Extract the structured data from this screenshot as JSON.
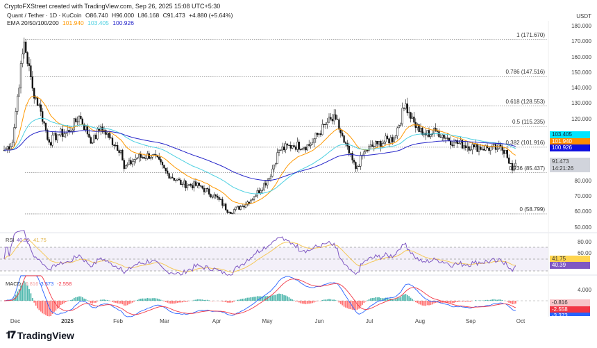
{
  "header": {
    "credit": "CryptoFXStreet created with TradingView.com, Sep 26, 2025 15:08 UTC+5:30",
    "symbol": "Quant / Tether · 1D · KuCoin",
    "open": "O86.740",
    "high": "H96.000",
    "low": "L86.168",
    "close": "C91.473",
    "change": "+4.880 (+5.64%)",
    "ema_label": "EMA 20/50/100/200",
    "ema_values": [
      "101.940",
      "103.405",
      "100.926"
    ]
  },
  "colors": {
    "up": "#089981",
    "down": "#f23645",
    "ema20": "#ff9800",
    "ema50": "#4dd0e1",
    "ema100": "#2424c8",
    "rsi": "#7e57c2",
    "rsi_ma": "#f5c85a",
    "macd": "#2962ff",
    "signal": "#f23645"
  },
  "price_axis": {
    "unit": "USDT",
    "ticks": [
      "180.000",
      "170.000",
      "160.000",
      "150.000",
      "140.000",
      "130.000",
      "120.000",
      "80.000",
      "70.000",
      "60.000",
      "50.000"
    ],
    "badges": {
      "ema50": "103.405",
      "ema20": "101.940",
      "ema100": "100.926",
      "price": "91.473",
      "countdown": "14:21:26"
    }
  },
  "fib_levels": [
    {
      "label": "1 (171.670)",
      "value": 171.67
    },
    {
      "label": "0.786 (147.516)",
      "value": 147.516
    },
    {
      "label": "0.618 (128.553)",
      "value": 128.553
    },
    {
      "label": "0.5 (115.235)",
      "value": 115.235
    },
    {
      "label": "0.382 (101.916)",
      "value": 101.916
    },
    {
      "label": "0.236 (85.437)",
      "value": 85.437
    },
    {
      "label": "0 (58.799)",
      "value": 58.799
    }
  ],
  "rsi": {
    "label": "RSI",
    "value": "40.39",
    "ma": "41.75",
    "ticks": [
      "80.00",
      "60.00"
    ]
  },
  "macd": {
    "label": "MACD",
    "hist": "-0.816",
    "macd": "-3.373",
    "signal": "-2.558",
    "ticks": [
      "4.000"
    ]
  },
  "dates": [
    "Dec",
    "2025",
    "Feb",
    "Mar",
    "Apr",
    "May",
    "Jun",
    "Jul",
    "Aug",
    "Sep",
    "Oct"
  ],
  "footer": {
    "logo": "TradingView"
  },
  "chart_data": {
    "type": "candlestick",
    "ylim": [
      50,
      180
    ],
    "keypoints_day_close": [
      [
        0,
        100
      ],
      [
        5,
        105
      ],
      [
        8,
        135
      ],
      [
        12,
        170
      ],
      [
        17,
        140
      ],
      [
        22,
        125
      ],
      [
        27,
        105
      ],
      [
        32,
        110
      ],
      [
        39,
        112
      ],
      [
        45,
        122
      ],
      [
        53,
        105
      ],
      [
        58,
        115
      ],
      [
        63,
        108
      ],
      [
        70,
        100
      ],
      [
        72,
        88
      ],
      [
        79,
        95
      ],
      [
        89,
        97
      ],
      [
        98,
        85
      ],
      [
        107,
        78
      ],
      [
        117,
        77
      ],
      [
        129,
        68
      ],
      [
        135,
        60
      ],
      [
        143,
        64
      ],
      [
        150,
        70
      ],
      [
        159,
        82
      ],
      [
        165,
        100
      ],
      [
        173,
        103
      ],
      [
        183,
        103
      ],
      [
        194,
        118
      ],
      [
        199,
        120
      ],
      [
        204,
        105
      ],
      [
        211,
        88
      ],
      [
        217,
        100
      ],
      [
        224,
        104
      ],
      [
        234,
        108
      ],
      [
        241,
        130
      ],
      [
        246,
        118
      ],
      [
        251,
        110
      ],
      [
        260,
        112
      ],
      [
        270,
        105
      ],
      [
        282,
        102
      ],
      [
        296,
        101
      ],
      [
        301,
        100
      ],
      [
        305,
        87
      ],
      [
        307,
        91.5
      ]
    ]
  }
}
